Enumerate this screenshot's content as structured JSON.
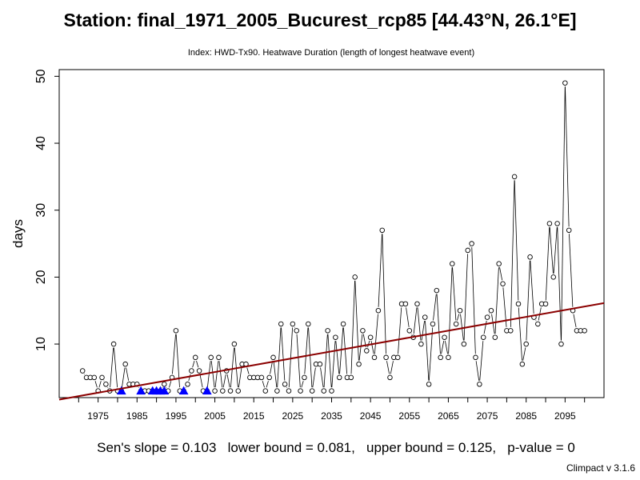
{
  "title": "Station: final_1971_2005_Bucurest_rcp85 [44.43°N, 26.1°E]",
  "subtitle": "Index: HWD-Tx90. Heatwave Duration (length of longest heatwave event)",
  "stats_text": "Sen's slope = 0.103   lower bound = 0.081,   upper bound = 0.125,   p-value = 0",
  "version": "Climpact v 3.1.6",
  "chart_data": {
    "type": "line",
    "ylabel": "days",
    "xlim": [
      1965,
      2105
    ],
    "ylim": [
      2.0,
      51.0
    ],
    "x_ticks": [
      1975,
      1985,
      1995,
      2005,
      2015,
      2025,
      2035,
      2045,
      2055,
      2065,
      2075,
      2085,
      2095
    ],
    "y_ticks": [
      10,
      20,
      30,
      40,
      50
    ],
    "series": [
      {
        "style": "line-with-open-circles",
        "color": "#000000",
        "x": [
          1971,
          1972,
          1973,
          1974,
          1975,
          1976,
          1977,
          1978,
          1979,
          1980,
          1981,
          1982,
          1983,
          1984,
          1985,
          1986,
          1987,
          1988,
          1989,
          1990,
          1991,
          1992,
          1993,
          1994,
          1995,
          1996,
          1997,
          1998,
          1999,
          2000,
          2001,
          2002,
          2003,
          2004,
          2005,
          2006,
          2007,
          2008,
          2009,
          2010,
          2011,
          2012,
          2013,
          2014,
          2015,
          2016,
          2017,
          2018,
          2019,
          2020,
          2021,
          2022,
          2023,
          2024,
          2025,
          2026,
          2027,
          2028,
          2029,
          2030,
          2031,
          2032,
          2033,
          2034,
          2035,
          2036,
          2037,
          2038,
          2039,
          2040,
          2041,
          2042,
          2043,
          2044,
          2045,
          2046,
          2047,
          2048,
          2049,
          2050,
          2051,
          2052,
          2053,
          2054,
          2055,
          2056,
          2057,
          2058,
          2059,
          2060,
          2061,
          2062,
          2063,
          2064,
          2065,
          2066,
          2067,
          2068,
          2069,
          2070,
          2071,
          2072,
          2073,
          2074,
          2075,
          2076,
          2077,
          2078,
          2079,
          2080,
          2081,
          2082,
          2083,
          2084,
          2085,
          2086,
          2087,
          2088,
          2089,
          2090,
          2091,
          2092,
          2093,
          2094,
          2095,
          2096,
          2097,
          2098,
          2099,
          2100
        ],
        "values": [
          6,
          5,
          5,
          5,
          3,
          5,
          4,
          3,
          10,
          3,
          3,
          7,
          4,
          4,
          4,
          3,
          3,
          3,
          3,
          3,
          3,
          4,
          3,
          5,
          12,
          3,
          3,
          4,
          6,
          8,
          6,
          3,
          3,
          8,
          3,
          8,
          3,
          6,
          3,
          10,
          3,
          7,
          7,
          5,
          5,
          5,
          5,
          3,
          5,
          8,
          3,
          13,
          4,
          3,
          13,
          12,
          3,
          5,
          13,
          3,
          7,
          7,
          3,
          12,
          3,
          11,
          5,
          13,
          5,
          5,
          20,
          7,
          12,
          9,
          11,
          8,
          15,
          27,
          8,
          5,
          8,
          8,
          16,
          16,
          12,
          11,
          16,
          10,
          14,
          4,
          13,
          18,
          8,
          11,
          8,
          22,
          13,
          15,
          10,
          24,
          25,
          8,
          4,
          11,
          14,
          15,
          11,
          22,
          19,
          12,
          12,
          35,
          16,
          7,
          10,
          23,
          14,
          13,
          16,
          16,
          28,
          20,
          28,
          10,
          49,
          27,
          15,
          12,
          12,
          12
        ]
      },
      {
        "style": "filled-triangle-markers",
        "color": "#0000ff",
        "x": [
          1981,
          1986,
          1989,
          1990,
          1991,
          1992,
          1997,
          2003
        ],
        "values": [
          3,
          3,
          3,
          3,
          3,
          3,
          3,
          3
        ]
      }
    ],
    "trend": {
      "type": "sen-slope",
      "color": "#8b0000",
      "slope": 0.103,
      "intercept_at_1965": 1.7
    }
  }
}
